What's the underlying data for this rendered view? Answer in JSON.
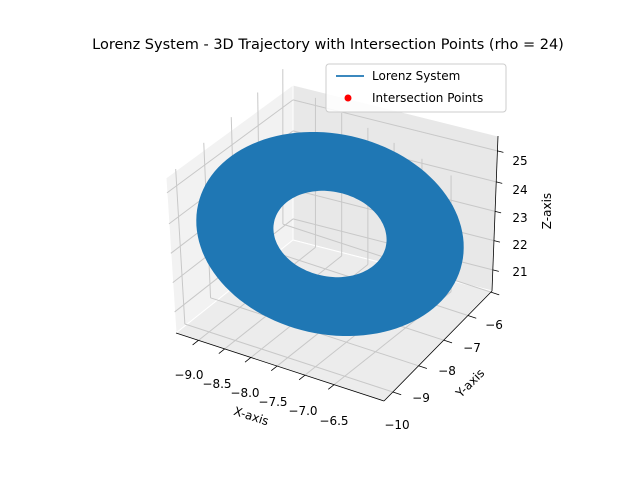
{
  "chart_data": {
    "type": "scatter",
    "projection": "3d",
    "title": "Lorenz System - 3D Trajectory with Intersection Points (rho = 24)",
    "xlabel": "X-axis",
    "ylabel": "Y-axis",
    "zlabel": "Z-axis",
    "xlim": [
      -9.2,
      -6.3
    ],
    "ylim": [
      -10.1,
      -5.7
    ],
    "zlim": [
      20.5,
      25.4
    ],
    "x_ticks": [
      "−9.0",
      "−8.5",
      "−8.0",
      "−7.5",
      "−7.0",
      "−6.5"
    ],
    "y_ticks": [
      "−10",
      "−9",
      "−8",
      "−7",
      "−6"
    ],
    "z_ticks": [
      "21",
      "22",
      "23",
      "24",
      "25"
    ],
    "grid": true,
    "legend_position": "top-right",
    "series": [
      {
        "name": "Lorenz System",
        "kind": "line",
        "color": "#1f77b4",
        "shape": "annular orbit band",
        "center": {
          "x": -7.85,
          "y": -7.85,
          "z": 23.0
        },
        "outer_radius": 1.3,
        "inner_radius": 0.55
      },
      {
        "name": "Intersection Points",
        "kind": "scatter",
        "color": "#ff0000",
        "points": []
      }
    ]
  }
}
